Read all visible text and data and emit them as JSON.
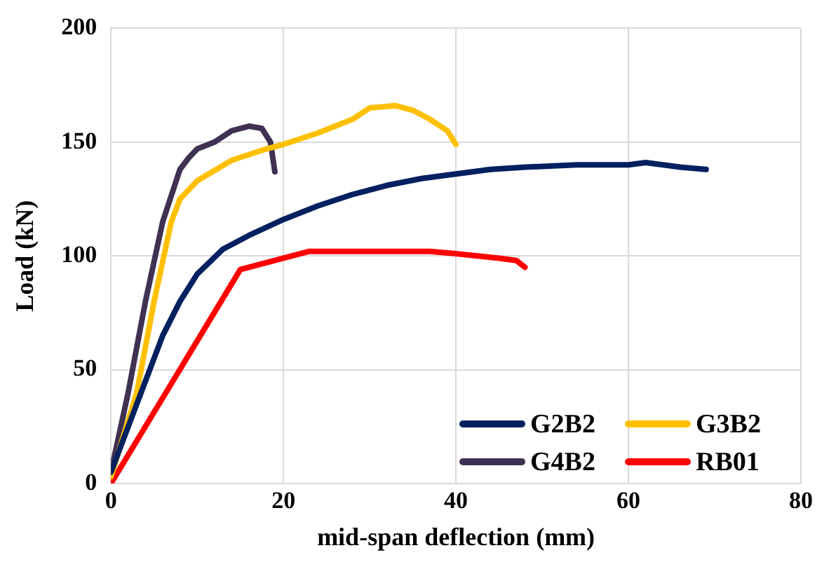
{
  "chart_data": {
    "type": "line",
    "xlabel": "mid-span deflection (mm)",
    "ylabel": "Load (kN)",
    "xlim": [
      0,
      80
    ],
    "xticks": [
      0,
      20,
      40,
      60,
      80
    ],
    "ylim": [
      0,
      200
    ],
    "yticks": [
      0,
      50,
      100,
      150,
      200
    ],
    "grid": true,
    "legend": "bottom right",
    "marker": "none",
    "line_style": "solid",
    "series": [
      {
        "name": "G2B2",
        "color": "#002060",
        "x": [
          0,
          3,
          6,
          8,
          10,
          13,
          16,
          20,
          24,
          28,
          32,
          36,
          40,
          44,
          48,
          54,
          60,
          62,
          66,
          69
        ],
        "values": [
          5,
          35,
          65,
          80,
          92,
          103,
          109,
          116,
          122,
          127,
          131,
          134,
          136,
          138,
          139,
          140,
          140,
          141,
          139,
          138
        ]
      },
      {
        "name": "G3B2",
        "color": "#ffc000",
        "x": [
          0,
          3,
          5,
          7,
          8,
          10,
          14,
          18,
          20,
          24,
          28,
          30,
          33,
          35,
          37,
          39,
          40
        ],
        "values": [
          3,
          40,
          80,
          115,
          125,
          133,
          142,
          147,
          149,
          154,
          160,
          165,
          166,
          164,
          160,
          155,
          149
        ]
      },
      {
        "name": "G4B2",
        "color": "#3f3151",
        "x": [
          0,
          2,
          4,
          6,
          8,
          9,
          10,
          12,
          14,
          16,
          17.5,
          18.5,
          19
        ],
        "values": [
          5,
          40,
          80,
          115,
          138,
          143,
          147,
          150,
          155,
          157,
          156,
          150,
          137
        ]
      },
      {
        "name": "RB01",
        "color": "#ff0000",
        "x": [
          0,
          15,
          20,
          23,
          30,
          37,
          40,
          45,
          47,
          48
        ],
        "values": [
          0,
          94,
          99,
          102,
          102,
          102,
          101,
          99,
          98,
          95
        ]
      }
    ]
  }
}
